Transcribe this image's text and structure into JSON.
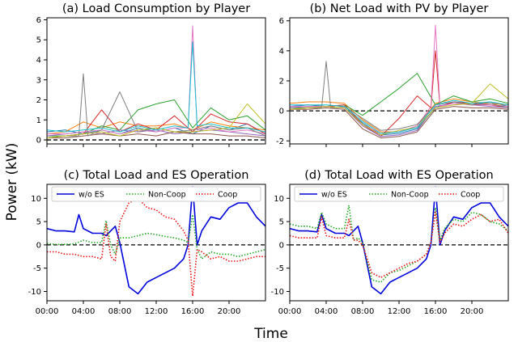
{
  "figure": {
    "ylabel": "Power (kW)",
    "xlabel": "Time",
    "xticks": [
      "00:00",
      "04:00",
      "08:00",
      "12:00",
      "16:00",
      "20:00"
    ]
  },
  "colors": {
    "wo_es": "#0000dd",
    "noncoop": "#22aa22",
    "coop": "#ee1111",
    "players": [
      "#1f77b4",
      "#ff7f0e",
      "#2ca02c",
      "#d62728",
      "#9467bd",
      "#8c564b",
      "#e377c2",
      "#7f7f7f",
      "#bcbd22",
      "#17becf"
    ]
  },
  "chart_data": [
    {
      "type": "line",
      "title": "(a) Load Consumption by Player",
      "xlim": [
        0,
        24
      ],
      "ylim": [
        -0.2,
        6.1
      ],
      "yticks": [
        0,
        1,
        2,
        3,
        4,
        5,
        6
      ],
      "zero_line": true,
      "series": [
        {
          "x": [
            0,
            2,
            4,
            6,
            8,
            10,
            12,
            14,
            16,
            18,
            20,
            22,
            24
          ],
          "values": [
            0.4,
            0.5,
            0.3,
            0.5,
            0.3,
            0.6,
            0.4,
            0.6,
            0.3,
            0.7,
            0.5,
            0.8,
            0.3
          ]
        },
        {
          "x": [
            0,
            2,
            4,
            6,
            8,
            10,
            12,
            14,
            16,
            18,
            20,
            22,
            24
          ],
          "values": [
            0.3,
            0.4,
            0.9,
            0.6,
            0.9,
            0.7,
            0.7,
            0.8,
            0.5,
            0.9,
            0.7,
            0.6,
            0.5
          ]
        },
        {
          "x": [
            0,
            2,
            4,
            6,
            8,
            10,
            12,
            14,
            16,
            18,
            20,
            22,
            24
          ],
          "values": [
            0.2,
            0.2,
            0.3,
            0.7,
            0.5,
            1.5,
            1.8,
            2.0,
            0.6,
            1.6,
            1.0,
            1.2,
            0.5
          ]
        },
        {
          "x": [
            0,
            2,
            4,
            6,
            8,
            10,
            12,
            14,
            16,
            18,
            20,
            22,
            24
          ],
          "values": [
            0.1,
            0.2,
            0.3,
            1.5,
            0.4,
            0.8,
            0.5,
            1.2,
            0.4,
            1.3,
            0.9,
            0.8,
            0.3
          ]
        },
        {
          "x": [
            0,
            2,
            4,
            6,
            8,
            10,
            12,
            14,
            16,
            18,
            20,
            22,
            24
          ],
          "values": [
            0.2,
            0.3,
            0.4,
            0.3,
            0.5,
            0.4,
            0.5,
            0.3,
            0.4,
            0.5,
            0.4,
            0.3,
            0.2
          ]
        },
        {
          "x": [
            0,
            2,
            4,
            6,
            8,
            10,
            12,
            14,
            16,
            18,
            20,
            22,
            24
          ],
          "values": [
            0.1,
            0.1,
            0.2,
            0.3,
            0.2,
            0.3,
            0.2,
            0.4,
            0.3,
            0.3,
            0.2,
            0.2,
            0.1
          ]
        },
        {
          "x": [
            0,
            2,
            4,
            6,
            8,
            10,
            12,
            14,
            15.5,
            16,
            16.5,
            18,
            20,
            22,
            24
          ],
          "values": [
            0.3,
            0.3,
            0.4,
            0.5,
            0.3,
            0.5,
            0.4,
            0.6,
            0.6,
            5.7,
            0.5,
            0.6,
            0.4,
            0.5,
            0.3
          ]
        },
        {
          "x": [
            0,
            2,
            3.5,
            4,
            4.5,
            6,
            8,
            10,
            12,
            14,
            16,
            18,
            20,
            22,
            24
          ],
          "values": [
            0.1,
            0.2,
            0.2,
            3.3,
            0.2,
            0.5,
            2.4,
            0.4,
            0.6,
            0.4,
            0.5,
            0.7,
            0.5,
            0.6,
            0.2
          ]
        },
        {
          "x": [
            0,
            2,
            4,
            6,
            8,
            10,
            12,
            14,
            16,
            18,
            20,
            22,
            24
          ],
          "values": [
            0.1,
            0.2,
            0.3,
            0.4,
            0.2,
            0.5,
            0.6,
            0.4,
            0.4,
            0.5,
            0.6,
            1.8,
            0.8
          ]
        },
        {
          "x": [
            0,
            2,
            4,
            6,
            8,
            10,
            12,
            14,
            15.5,
            16,
            16.5,
            18,
            20,
            22,
            24
          ],
          "values": [
            0.5,
            0.4,
            0.5,
            0.6,
            0.4,
            0.7,
            0.5,
            0.7,
            0.6,
            4.9,
            0.7,
            0.8,
            0.6,
            0.6,
            0.4
          ]
        }
      ]
    },
    {
      "type": "line",
      "title": "(b) Net Load with PV by Player",
      "xlim": [
        0,
        24
      ],
      "ylim": [
        -2.2,
        6.2
      ],
      "yticks": [
        -2,
        0,
        2,
        4,
        6
      ],
      "zero_line": true,
      "series": [
        {
          "x": [
            0,
            2,
            4,
            6,
            8,
            10,
            12,
            14,
            16,
            18,
            20,
            22,
            24
          ],
          "values": [
            0.3,
            0.4,
            0.3,
            0.2,
            -0.8,
            -1.6,
            -1.5,
            -1.2,
            0.2,
            0.6,
            0.4,
            0.6,
            0.3
          ]
        },
        {
          "x": [
            0,
            2,
            4,
            6,
            8,
            10,
            12,
            14,
            16,
            18,
            20,
            22,
            24
          ],
          "values": [
            0.5,
            0.6,
            0.6,
            0.5,
            -0.6,
            -1.4,
            -1.4,
            -1.0,
            0.5,
            0.8,
            0.6,
            0.5,
            0.4
          ]
        },
        {
          "x": [
            0,
            2,
            4,
            6,
            8,
            10,
            12,
            14,
            16,
            18,
            20,
            22,
            24
          ],
          "values": [
            0.2,
            0.2,
            0.3,
            0.4,
            -0.3,
            0.6,
            1.5,
            2.5,
            0.4,
            1.0,
            0.6,
            0.8,
            0.5
          ]
        },
        {
          "x": [
            0,
            2,
            4,
            6,
            8,
            10,
            12,
            14,
            15.5,
            16,
            16.5,
            18,
            20,
            22,
            24
          ],
          "values": [
            0.1,
            0.2,
            0.3,
            0.4,
            -0.9,
            -1.7,
            -0.5,
            1.0,
            0.2,
            4.0,
            0.3,
            0.6,
            0.5,
            0.4,
            0.2
          ]
        },
        {
          "x": [
            0,
            2,
            4,
            6,
            8,
            10,
            12,
            14,
            16,
            18,
            20,
            22,
            24
          ],
          "values": [
            0.2,
            0.3,
            0.3,
            0.2,
            -1.0,
            -1.7,
            -1.6,
            -1.3,
            0.3,
            0.5,
            0.4,
            0.3,
            0.2
          ]
        },
        {
          "x": [
            0,
            2,
            4,
            6,
            8,
            10,
            12,
            14,
            16,
            18,
            20,
            22,
            24
          ],
          "values": [
            0.1,
            0.1,
            0.2,
            0.1,
            -1.2,
            -1.8,
            -1.7,
            -1.4,
            0.1,
            0.3,
            0.2,
            0.2,
            0.1
          ]
        },
        {
          "x": [
            0,
            2,
            4,
            6,
            8,
            10,
            12,
            14,
            15.5,
            16,
            16.5,
            18,
            20,
            22,
            24
          ],
          "values": [
            0.3,
            0.3,
            0.3,
            0.2,
            -0.9,
            -1.5,
            -1.4,
            -1.0,
            0.3,
            5.7,
            0.3,
            0.5,
            0.4,
            0.4,
            0.3
          ]
        },
        {
          "x": [
            0,
            2,
            3.5,
            4,
            4.5,
            6,
            8,
            10,
            12,
            14,
            16,
            18,
            20,
            22,
            24
          ],
          "values": [
            0.1,
            0.2,
            0.2,
            3.3,
            0.2,
            0.3,
            -0.5,
            -1.3,
            -1.2,
            -0.9,
            0.4,
            0.6,
            0.4,
            0.5,
            0.2
          ]
        },
        {
          "x": [
            0,
            2,
            4,
            6,
            8,
            10,
            12,
            14,
            16,
            18,
            20,
            22,
            24
          ],
          "values": [
            0.1,
            0.2,
            0.3,
            0.2,
            -0.9,
            -1.6,
            -1.3,
            -1.1,
            0.2,
            0.4,
            0.5,
            1.8,
            0.8
          ]
        },
        {
          "x": [
            0,
            2,
            4,
            6,
            8,
            10,
            12,
            14,
            16,
            18,
            20,
            22,
            24
          ],
          "values": [
            0.4,
            0.4,
            0.4,
            0.3,
            -0.7,
            -1.5,
            -1.4,
            -1.1,
            0.4,
            0.7,
            0.5,
            0.6,
            0.4
          ]
        }
      ]
    },
    {
      "type": "line",
      "title": "(c) Total Load and ES Operation",
      "xlim": [
        0,
        24
      ],
      "ylim": [
        -12,
        13
      ],
      "yticks": [
        -10,
        -5,
        0,
        5,
        10
      ],
      "zero_line": true,
      "legend": {
        "placement": "top",
        "entries": [
          "w/o ES",
          "Non-Coop",
          "Coop"
        ]
      },
      "series": [
        {
          "name": "w/o ES",
          "x": [
            0,
            1,
            2,
            3,
            3.5,
            4,
            5,
            6,
            6.5,
            7,
            7.5,
            8,
            9,
            10,
            11,
            12,
            13,
            14,
            15,
            15.5,
            16,
            16.5,
            17,
            18,
            19,
            20,
            21,
            22,
            23,
            24
          ],
          "values": [
            3.5,
            3.0,
            3.0,
            2.8,
            6.5,
            3.5,
            2.5,
            2.5,
            2.0,
            3.0,
            4.0,
            0.5,
            -9.0,
            -10.5,
            -8.0,
            -7.0,
            -6.0,
            -5.0,
            -3.0,
            0.0,
            12.5,
            0.0,
            3.0,
            6.0,
            5.5,
            8.0,
            9.0,
            9.0,
            6.0,
            4.0
          ]
        },
        {
          "name": "Non-Coop",
          "x": [
            0,
            1,
            2,
            3,
            4,
            5,
            6,
            6.5,
            7,
            7.5,
            8,
            9,
            10,
            11,
            12,
            13,
            14,
            15,
            15.5,
            16,
            16.5,
            17,
            18,
            19,
            20,
            21,
            22,
            23,
            24
          ],
          "values": [
            0.3,
            0.1,
            0.1,
            0.2,
            1.0,
            0.5,
            0.5,
            5.2,
            0.0,
            -2.0,
            1.5,
            1.5,
            2.0,
            2.5,
            2.2,
            1.8,
            1.5,
            1.0,
            0.5,
            6.5,
            -1.0,
            -3.0,
            -1.5,
            -2.0,
            -2.0,
            -2.5,
            -2.0,
            -1.5,
            -1.0
          ]
        },
        {
          "name": "Coop",
          "x": [
            0,
            1,
            2,
            3,
            4,
            5,
            6,
            6.5,
            7,
            7.5,
            8,
            9,
            10,
            11,
            12,
            13,
            14,
            15,
            15.5,
            16,
            16.5,
            17,
            18,
            19,
            20,
            21,
            22,
            23,
            24
          ],
          "values": [
            -1.5,
            -1.5,
            -2.0,
            -2.0,
            -2.5,
            -2.5,
            -3.0,
            4.5,
            -2.5,
            -3.5,
            5.0,
            9.0,
            10.0,
            8.0,
            7.5,
            6.0,
            5.5,
            3.0,
            1.0,
            -11.0,
            -1.0,
            -1.5,
            -3.0,
            -2.5,
            -3.5,
            -3.5,
            -3.0,
            -2.5,
            -2.5
          ]
        }
      ]
    },
    {
      "type": "line",
      "title": "(d) Total Load with ES Operation",
      "xlim": [
        0,
        24
      ],
      "ylim": [
        -12,
        13
      ],
      "yticks": [
        -10,
        -5,
        0,
        5,
        10
      ],
      "zero_line": true,
      "legend": {
        "placement": "top",
        "entries": [
          "w/o ES",
          "Non-Coop",
          "Coop"
        ]
      },
      "series": [
        {
          "name": "w/o ES",
          "x": [
            0,
            1,
            2,
            3,
            3.5,
            4,
            5,
            6,
            6.5,
            7,
            7.5,
            8,
            9,
            10,
            11,
            12,
            13,
            14,
            15,
            15.5,
            16,
            16.5,
            17,
            18,
            19,
            20,
            21,
            22,
            23,
            24
          ],
          "values": [
            3.5,
            3.0,
            3.0,
            2.8,
            6.5,
            3.5,
            2.5,
            2.5,
            2.0,
            3.0,
            4.0,
            0.5,
            -9.0,
            -10.5,
            -8.0,
            -7.0,
            -6.0,
            -5.0,
            -3.0,
            0.0,
            12.5,
            0.0,
            3.0,
            6.0,
            5.5,
            8.0,
            9.0,
            9.0,
            6.0,
            4.0
          ]
        },
        {
          "name": "Non-Coop",
          "x": [
            0,
            1,
            2,
            3,
            3.5,
            4,
            5,
            6,
            6.5,
            7,
            7.5,
            8,
            9,
            10,
            11,
            12,
            13,
            14,
            15,
            15.5,
            16,
            16.5,
            17,
            18,
            19,
            20,
            21,
            22,
            23,
            24
          ],
          "values": [
            4.5,
            4.0,
            4.0,
            3.5,
            7.0,
            4.5,
            3.5,
            3.5,
            8.5,
            1.0,
            1.5,
            0.5,
            -7.5,
            -8.0,
            -6.0,
            -5.5,
            -4.5,
            -3.5,
            -2.0,
            0.5,
            8.0,
            1.0,
            3.5,
            5.5,
            5.0,
            7.0,
            6.5,
            5.0,
            4.5,
            3.0
          ]
        },
        {
          "name": "Coop",
          "x": [
            0,
            1,
            2,
            3,
            3.5,
            4,
            5,
            6,
            6.5,
            7,
            7.5,
            8,
            9,
            10,
            11,
            12,
            13,
            14,
            15,
            15.5,
            16,
            16.5,
            17,
            18,
            19,
            20,
            21,
            22,
            23,
            24
          ],
          "values": [
            2.0,
            1.5,
            1.5,
            1.5,
            6.0,
            2.0,
            1.5,
            1.5,
            5.5,
            1.0,
            1.0,
            0.0,
            -6.0,
            -7.0,
            -6.0,
            -5.0,
            -4.0,
            -3.5,
            -2.0,
            0.5,
            7.0,
            0.5,
            2.5,
            4.5,
            4.0,
            5.5,
            6.5,
            5.0,
            5.5,
            2.5
          ]
        }
      ]
    }
  ]
}
